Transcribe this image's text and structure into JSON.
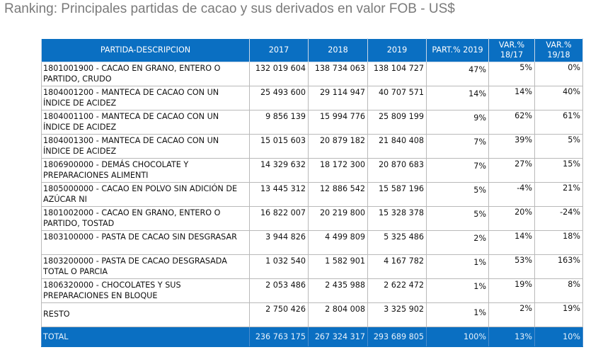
{
  "title": "Ranking: Principales partidas de cacao y sus derivados en valor FOB - US$",
  "colors": {
    "header_bg": "#0a6fc2",
    "header_text": "#ffffff",
    "grid": "#b9b9b9",
    "title_text": "#7a7a7a"
  },
  "table": {
    "headers": {
      "desc": "PARTIDA-DESCRIPCION",
      "y2017": "2017",
      "y2018": "2018",
      "y2019": "2019",
      "part": "PART.% 2019",
      "var1_l1": "VAR.%",
      "var1_l2": "18/17",
      "var2_l1": "VAR.%",
      "var2_l2": "19/18"
    },
    "rows": [
      {
        "desc": "1801001900 - CACAO EN GRANO, ENTERO O PARTIDO, CRUDO",
        "y2017": "132 019 604",
        "y2018": "138 734 063",
        "y2019": "138 104 727",
        "part": "47%",
        "var1": "5%",
        "var2": "0%"
      },
      {
        "desc": "1804001200 - MANTECA DE CACAO CON UN ÍNDICE DE ACIDEZ",
        "y2017": "25 493 600",
        "y2018": "29 114 947",
        "y2019": "40 707 571",
        "part": "14%",
        "var1": "14%",
        "var2": "40%"
      },
      {
        "desc": "1804001100 - MANTECA DE CACAO CON UN ÍNDICE DE ACIDEZ",
        "y2017": "9 856 139",
        "y2018": "15 994 776",
        "y2019": "25 809 199",
        "part": "9%",
        "var1": "62%",
        "var2": "61%"
      },
      {
        "desc": "1804001300 - MANTECA DE CACAO CON UN ÍNDICE DE ACIDEZ",
        "y2017": "15 015 603",
        "y2018": "20 879 182",
        "y2019": "21 840 408",
        "part": "7%",
        "var1": "39%",
        "var2": "5%"
      },
      {
        "desc": "1806900000 - DEMÁS CHOCOLATE Y PREPARACIONES ALIMENTI",
        "y2017": "14 329 632",
        "y2018": "18 172 300",
        "y2019": "20 870 683",
        "part": "7%",
        "var1": "27%",
        "var2": "15%"
      },
      {
        "desc": "1805000000 - CACAO EN POLVO SIN ADICIÓN DE AZÚCAR NI",
        "y2017": "13 445 312",
        "y2018": "12 886 542",
        "y2019": "15 587 196",
        "part": "5%",
        "var1": "-4%",
        "var2": "21%"
      },
      {
        "desc": "1801002000 - CACAO EN GRANO, ENTERO O PARTIDO, TOSTAD",
        "y2017": "16 822 007",
        "y2018": "20 219 800",
        "y2019": "15 328 378",
        "part": "5%",
        "var1": "20%",
        "var2": "-24%"
      },
      {
        "desc": "1803100000 - PASTA DE CACAO SIN DESGRASAR",
        "y2017": "3 944 826",
        "y2018": "4 499 809",
        "y2019": "5 325 486",
        "part": "2%",
        "var1": "14%",
        "var2": "18%"
      },
      {
        "desc": "1803200000 - PASTA DE CACAO DESGRASADA TOTAL O PARCIA",
        "y2017": "1 032 540",
        "y2018": "1 582 901",
        "y2019": "4 167 782",
        "part": "1%",
        "var1": "53%",
        "var2": "163%"
      },
      {
        "desc": "1806320000 - CHOCOLATES Y SUS PREPARACIONES EN BLOQUE",
        "y2017": "2 053 486",
        "y2018": "2 435 988",
        "y2019": "2 622 472",
        "part": "1%",
        "var1": "19%",
        "var2": "8%"
      },
      {
        "desc": "RESTO",
        "y2017": "2 750 426",
        "y2018": "2 804 008",
        "y2019": "3 325 902",
        "part": "1%",
        "var1": "2%",
        "var2": "19%"
      }
    ],
    "total": {
      "desc": "TOTAL",
      "y2017": "236 763 175",
      "y2018": "267 324 317",
      "y2019": "293 689 805",
      "part": "100%",
      "var1": "13%",
      "var2": "10%"
    }
  }
}
